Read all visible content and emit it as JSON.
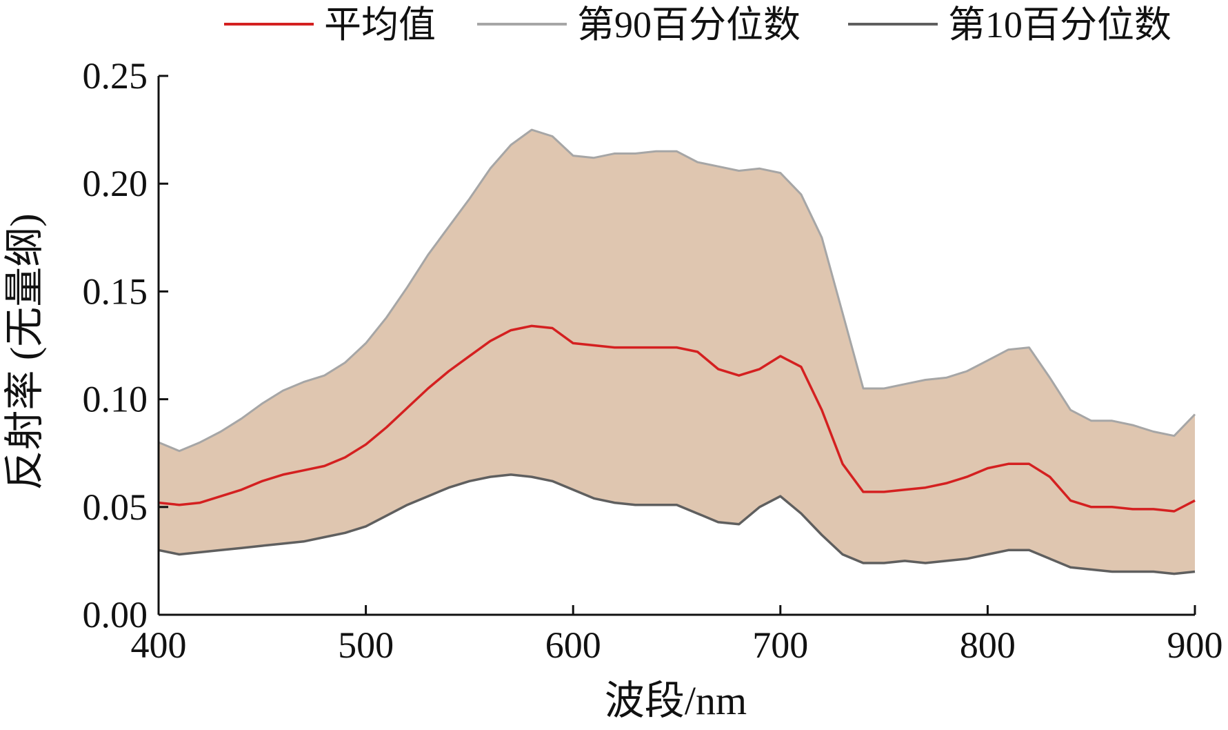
{
  "chart_data": {
    "type": "area",
    "title": "",
    "xlabel": "波段/nm",
    "ylabel": "反射率 (无量纲)",
    "xlim": [
      400,
      900
    ],
    "ylim": [
      0,
      0.25
    ],
    "x_ticks": [
      400,
      500,
      600,
      700,
      800,
      900
    ],
    "y_ticks": [
      0.0,
      0.05,
      0.1,
      0.15,
      0.2,
      0.25
    ],
    "x_tick_labels": [
      "400",
      "500",
      "600",
      "700",
      "800",
      "900"
    ],
    "y_tick_labels": [
      "0.00",
      "0.05",
      "0.10",
      "0.15",
      "0.20",
      "0.25"
    ],
    "legend": {
      "position": "top",
      "entries": [
        "平均值",
        "第90百分位数",
        "第10百分位数"
      ]
    },
    "fill_color": "#dfc6b0",
    "x": [
      400,
      410,
      420,
      430,
      440,
      450,
      460,
      470,
      480,
      490,
      500,
      510,
      520,
      530,
      540,
      550,
      560,
      570,
      580,
      590,
      600,
      610,
      620,
      630,
      640,
      650,
      660,
      670,
      680,
      690,
      700,
      710,
      720,
      730,
      740,
      750,
      760,
      770,
      780,
      790,
      800,
      810,
      820,
      830,
      840,
      850,
      860,
      870,
      880,
      890,
      900
    ],
    "series": [
      {
        "name": "平均值",
        "color": "#d42020",
        "values": [
          0.052,
          0.051,
          0.052,
          0.055,
          0.058,
          0.062,
          0.065,
          0.067,
          0.069,
          0.073,
          0.079,
          0.087,
          0.096,
          0.105,
          0.113,
          0.12,
          0.127,
          0.132,
          0.134,
          0.133,
          0.126,
          0.125,
          0.124,
          0.124,
          0.124,
          0.124,
          0.122,
          0.114,
          0.111,
          0.114,
          0.12,
          0.115,
          0.095,
          0.07,
          0.057,
          0.057,
          0.058,
          0.059,
          0.061,
          0.064,
          0.068,
          0.07,
          0.07,
          0.064,
          0.053,
          0.05,
          0.05,
          0.049,
          0.049,
          0.048,
          0.053
        ]
      },
      {
        "name": "第90百分位数",
        "color": "#a6a6a6",
        "values": [
          0.08,
          0.076,
          0.08,
          0.085,
          0.091,
          0.098,
          0.104,
          0.108,
          0.111,
          0.117,
          0.126,
          0.138,
          0.152,
          0.167,
          0.18,
          0.193,
          0.207,
          0.218,
          0.225,
          0.222,
          0.213,
          0.212,
          0.214,
          0.214,
          0.215,
          0.215,
          0.21,
          0.208,
          0.206,
          0.207,
          0.205,
          0.195,
          0.175,
          0.14,
          0.105,
          0.105,
          0.107,
          0.109,
          0.11,
          0.113,
          0.118,
          0.123,
          0.124,
          0.11,
          0.095,
          0.09,
          0.09,
          0.088,
          0.085,
          0.083,
          0.093
        ]
      },
      {
        "name": "第10百分位数",
        "color": "#5f5f5f",
        "values": [
          0.03,
          0.028,
          0.029,
          0.03,
          0.031,
          0.032,
          0.033,
          0.034,
          0.036,
          0.038,
          0.041,
          0.046,
          0.051,
          0.055,
          0.059,
          0.062,
          0.064,
          0.065,
          0.064,
          0.062,
          0.058,
          0.054,
          0.052,
          0.051,
          0.051,
          0.051,
          0.047,
          0.043,
          0.042,
          0.05,
          0.055,
          0.047,
          0.037,
          0.028,
          0.024,
          0.024,
          0.025,
          0.024,
          0.025,
          0.026,
          0.028,
          0.03,
          0.03,
          0.026,
          0.022,
          0.021,
          0.02,
          0.02,
          0.02,
          0.019,
          0.02
        ]
      }
    ]
  }
}
